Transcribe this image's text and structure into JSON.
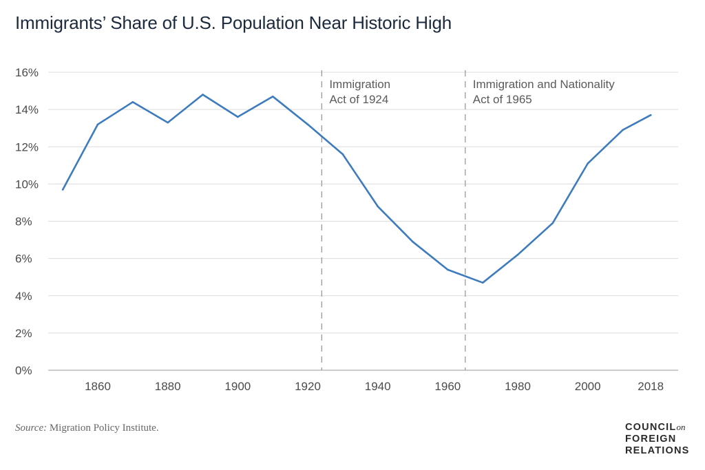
{
  "title": "Immigrants’ Share of U.S. Population Near Historic High",
  "source_label": "Source:",
  "source_text": "Migration Policy Institute.",
  "logo": {
    "line1": "COUNCIL",
    "on": "on",
    "line2": "FOREIGN",
    "line3": "RELATIONS"
  },
  "chart_data": {
    "type": "line",
    "title": "Immigrants’ Share of U.S. Population Near Historic High",
    "x": [
      1850,
      1860,
      1870,
      1880,
      1890,
      1900,
      1910,
      1920,
      1930,
      1940,
      1950,
      1960,
      1970,
      1980,
      1990,
      2000,
      2010,
      2018
    ],
    "series": [
      {
        "values": [
          9.7,
          13.2,
          14.4,
          13.3,
          14.8,
          13.6,
          14.7,
          13.2,
          11.6,
          8.8,
          6.9,
          5.4,
          4.7,
          6.2,
          7.9,
          11.1,
          12.9,
          13.7
        ]
      }
    ],
    "xticks": [
      "1860",
      "1880",
      "1900",
      "1920",
      "1940",
      "1960",
      "1980",
      "2000",
      "2018"
    ],
    "xtick_values": [
      1860,
      1880,
      1900,
      1920,
      1940,
      1960,
      1980,
      2000,
      2018
    ],
    "yticks": [
      "0%",
      "2%",
      "4%",
      "6%",
      "8%",
      "10%",
      "12%",
      "14%",
      "16%"
    ],
    "ylim": [
      0,
      16
    ],
    "grid": true,
    "line_color": "#3d7bbf",
    "annotations": [
      {
        "x": 1924,
        "lines": [
          "Immigration",
          "Act of 1924"
        ]
      },
      {
        "x": 1965,
        "lines": [
          "Immigration and Nationality",
          "Act of 1965"
        ]
      }
    ]
  }
}
